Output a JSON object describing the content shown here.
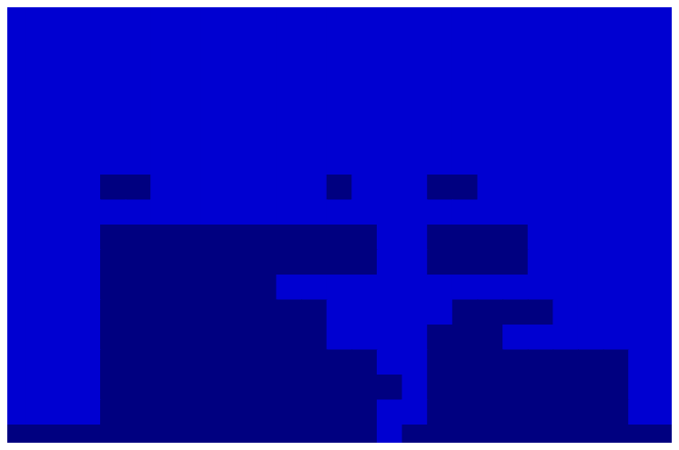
{
  "chart_data": {
    "type": "heatmap",
    "tick_labels": false,
    "xlim": [
      0,
      27
    ],
    "ylim": [
      0,
      18
    ],
    "zlim": [
      0,
      1
    ],
    "cells": [
      [
        0.08,
        0.08,
        0.08,
        0.08,
        0.08,
        0.08,
        0.08,
        0.08,
        0.08,
        0.08,
        0.08,
        0.08,
        0.08,
        0.08,
        0.08,
        0.08,
        0.08,
        0.08,
        0.08,
        0.08,
        0.08,
        0.08,
        0.08,
        0.08,
        0.08,
        0.08,
        0.08
      ],
      [
        0.08,
        0.08,
        0.08,
        0.08,
        0.08,
        0.08,
        0.08,
        0.08,
        0.08,
        0.08,
        0.08,
        0.08,
        0.08,
        0.08,
        0.08,
        0.08,
        0.08,
        0.08,
        0.08,
        0.08,
        0.08,
        0.08,
        0.08,
        0.08,
        0.08,
        0.08,
        0.08
      ],
      [
        0.08,
        0.08,
        0.08,
        0.08,
        0.08,
        0.08,
        0.08,
        0.08,
        0.08,
        0.08,
        0.08,
        0.08,
        0.08,
        0.08,
        0.08,
        0.08,
        0.08,
        0.08,
        0.08,
        0.08,
        0.08,
        0.08,
        0.08,
        0.08,
        0.08,
        0.08,
        0.08
      ],
      [
        0.08,
        0.08,
        0.08,
        0.08,
        0.08,
        0.08,
        0.08,
        0.08,
        0.08,
        0.08,
        0.08,
        0.08,
        0.08,
        0.08,
        0.08,
        0.08,
        0.08,
        0.08,
        0.08,
        0.08,
        0.08,
        0.08,
        0.08,
        0.08,
        0.08,
        0.08,
        0.08
      ],
      [
        0.08,
        0.08,
        0.08,
        0.08,
        0.08,
        0.08,
        0.08,
        0.08,
        0.08,
        0.08,
        0.08,
        0.08,
        0.08,
        0.08,
        0.08,
        0.08,
        0.08,
        0.08,
        0.08,
        0.08,
        0.08,
        0.08,
        0.08,
        0.08,
        0.08,
        0.08,
        0.08
      ],
      [
        0.08,
        0.08,
        0.08,
        0.08,
        0.08,
        0.08,
        0.08,
        0.08,
        0.08,
        0.08,
        0.08,
        0.08,
        0.08,
        0.08,
        0.08,
        0.08,
        0.08,
        0.08,
        0.08,
        0.08,
        0.08,
        0.08,
        0.08,
        0.08,
        0.08,
        0.08,
        0.08
      ],
      [
        0.08,
        0.08,
        0.08,
        0.08,
        0.08,
        0.08,
        0.08,
        0.08,
        0.08,
        0.08,
        0.08,
        0.08,
        0.08,
        0.08,
        0.08,
        0.08,
        0.08,
        0.08,
        0.08,
        0.08,
        0.08,
        0.08,
        0.08,
        0.08,
        0.08,
        0.08,
        0.08
      ],
      [
        0.08,
        0.08,
        0.08,
        0.08,
        0,
        0,
        0.08,
        0.08,
        0.08,
        0.08,
        0.08,
        0.08,
        0.08,
        0,
        0.08,
        0.08,
        0.08,
        0,
        0,
        0.08,
        0.08,
        0.08,
        0.08,
        0.08,
        0.08,
        0.08,
        0.08
      ],
      [
        0.08,
        0.08,
        0.08,
        0.08,
        0.08,
        0.08,
        0.08,
        0.08,
        0.08,
        0.08,
        0.08,
        0.08,
        0.08,
        0.08,
        0.08,
        0.08,
        0.08,
        0.08,
        0.08,
        0.08,
        0.08,
        0.08,
        0.08,
        0.08,
        0.08,
        0.08,
        0.08
      ],
      [
        0.08,
        0.08,
        0.08,
        0.08,
        0,
        0,
        0,
        0,
        0,
        0,
        0,
        0,
        0,
        0,
        0,
        0.08,
        0.08,
        0,
        0,
        0,
        0,
        0.08,
        0.08,
        0.08,
        0.08,
        0.08,
        0.08
      ],
      [
        0.08,
        0.08,
        0.08,
        0.08,
        0,
        0,
        0,
        0,
        0,
        0,
        0,
        0,
        0,
        0,
        0,
        0.08,
        0.08,
        0,
        0,
        0,
        0,
        0.08,
        0.08,
        0.08,
        0.08,
        0.08,
        0.08
      ],
      [
        0.08,
        0.08,
        0.08,
        0.08,
        0,
        0,
        0,
        0,
        0,
        0,
        0,
        0.08,
        0.08,
        0.08,
        0.08,
        0.08,
        0.08,
        0.08,
        0.08,
        0.08,
        0.08,
        0.08,
        0.08,
        0.08,
        0.08,
        0.08,
        0.08
      ],
      [
        0.08,
        0.08,
        0.08,
        0.08,
        0,
        0,
        0,
        0,
        0,
        0,
        0,
        0,
        0,
        0.08,
        0.08,
        0.08,
        0.08,
        0.08,
        0,
        0,
        0,
        0,
        0.08,
        0.08,
        0.08,
        0.08,
        0.08
      ],
      [
        0.08,
        0.08,
        0.08,
        0.08,
        0,
        0,
        0,
        0,
        0,
        0,
        0,
        0,
        0,
        0.08,
        0.08,
        0.08,
        0.08,
        0,
        0,
        0,
        0.08,
        0.08,
        0.08,
        0.08,
        0.08,
        0.08,
        0.08
      ],
      [
        0.08,
        0.08,
        0.08,
        0.08,
        0,
        0,
        0,
        0,
        0,
        0,
        0,
        0,
        0,
        0,
        0,
        0.08,
        0.08,
        0,
        0,
        0,
        0,
        0,
        0,
        0,
        0,
        0.08,
        0.08
      ],
      [
        0.08,
        0.08,
        0.08,
        0.08,
        0,
        0,
        0,
        0,
        0,
        0,
        0,
        0,
        0,
        0,
        0,
        0,
        0.08,
        0,
        0,
        0,
        0,
        0,
        0,
        0,
        0,
        0.08,
        0.08
      ],
      [
        0.08,
        0.08,
        0.08,
        0.08,
        0,
        0,
        0,
        0,
        0,
        0,
        0,
        0,
        0,
        0,
        0,
        0.08,
        0.08,
        0,
        0,
        0,
        0,
        0,
        0,
        0,
        0,
        0.08,
        0.08
      ],
      [
        0,
        0,
        0,
        0,
        0,
        0,
        0,
        0,
        0,
        0,
        0,
        0,
        0,
        0,
        0,
        0.08,
        0,
        0,
        0,
        0,
        0,
        0,
        0,
        0,
        0,
        0,
        0
      ]
    ]
  }
}
